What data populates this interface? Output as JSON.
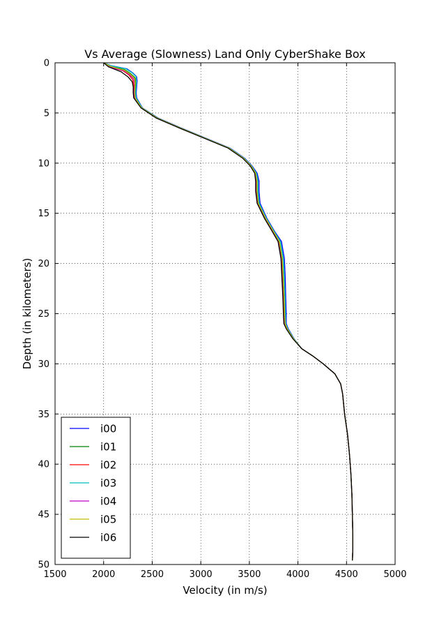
{
  "chart_data": {
    "type": "line",
    "title": "Vs Average (Slowness) Land Only CyberShake Box",
    "xlabel": "Velocity (in m/s)",
    "ylabel": "Depth (in kilometers)",
    "xlim": [
      1500,
      5000
    ],
    "ylim": [
      50,
      0
    ],
    "y_inverted": true,
    "xticks": [
      1500,
      2000,
      2500,
      3000,
      3500,
      4000,
      4500,
      5000
    ],
    "yticks": [
      0,
      5,
      10,
      15,
      20,
      25,
      30,
      35,
      40,
      45,
      50
    ],
    "grid": true,
    "grid_style": "dotted",
    "legend_position": "lower-left",
    "series": [
      {
        "name": "i00",
        "color": "#0000ff",
        "x": [
          2000,
          2080,
          2240,
          2300,
          2340,
          2345,
          2335,
          2340,
          2400,
          2560,
          2800,
          3050,
          3300,
          3450,
          3530,
          3580,
          3600,
          3600,
          3610,
          3680,
          3760,
          3830,
          3860,
          3870,
          3875,
          3880,
          3880,
          3900,
          3960,
          4040,
          4150,
          4260,
          4380,
          4440,
          4460,
          4480,
          4510,
          4530,
          4545,
          4555,
          4560,
          4565,
          4565,
          4562,
          4560
        ],
        "y": [
          0,
          0.3,
          0.6,
          1.0,
          1.4,
          1.8,
          3.0,
          3.5,
          4.5,
          5.5,
          6.5,
          7.5,
          8.5,
          9.5,
          10.3,
          11.0,
          11.8,
          12.8,
          14.0,
          15.5,
          16.8,
          17.8,
          19.5,
          21.5,
          23.5,
          25.0,
          26.0,
          26.5,
          27.5,
          28.5,
          29.2,
          30.0,
          31.0,
          32.0,
          33.0,
          35.0,
          37.0,
          39.0,
          41.0,
          43.0,
          45.0,
          47.0,
          48.5,
          49.3,
          49.6
        ]
      },
      {
        "name": "i01",
        "color": "#008000",
        "x": [
          2000,
          2070,
          2220,
          2280,
          2325,
          2330,
          2325,
          2330,
          2395,
          2550,
          2790,
          3040,
          3290,
          3440,
          3520,
          3565,
          3580,
          3580,
          3595,
          3670,
          3750,
          3810,
          3840,
          3850,
          3860,
          3865,
          3870,
          3890,
          3955,
          4040,
          4150,
          4260,
          4380,
          4440,
          4460,
          4480,
          4510,
          4530,
          4545,
          4555,
          4560,
          4565,
          4565,
          4562,
          4560
        ],
        "y": [
          0,
          0.3,
          0.7,
          1.1,
          1.5,
          2.0,
          3.0,
          3.5,
          4.5,
          5.5,
          6.5,
          7.5,
          8.5,
          9.5,
          10.3,
          11.0,
          11.8,
          12.8,
          14.0,
          15.5,
          16.8,
          17.8,
          19.5,
          21.5,
          23.5,
          25.0,
          26.0,
          26.5,
          27.5,
          28.5,
          29.2,
          30.0,
          31.0,
          32.0,
          33.0,
          35.0,
          37.0,
          39.0,
          41.0,
          43.0,
          45.0,
          47.0,
          48.5,
          49.3,
          49.6
        ]
      },
      {
        "name": "i02",
        "color": "#ff0000",
        "x": [
          2000,
          2060,
          2200,
          2260,
          2300,
          2310,
          2310,
          2315,
          2390,
          2545,
          2785,
          3035,
          3285,
          3435,
          3515,
          3560,
          3570,
          3570,
          3585,
          3660,
          3740,
          3800,
          3830,
          3840,
          3850,
          3855,
          3860,
          3885,
          3950,
          4040,
          4150,
          4260,
          4380,
          4440,
          4460,
          4480,
          4510,
          4530,
          4545,
          4555,
          4560,
          4565,
          4565,
          4562,
          4560
        ],
        "y": [
          0,
          0.4,
          0.8,
          1.2,
          1.7,
          2.2,
          3.0,
          3.5,
          4.5,
          5.5,
          6.5,
          7.5,
          8.5,
          9.5,
          10.3,
          11.0,
          11.8,
          12.8,
          14.0,
          15.5,
          16.8,
          17.8,
          19.5,
          21.5,
          23.5,
          25.0,
          26.0,
          26.5,
          27.5,
          28.5,
          29.2,
          30.0,
          31.0,
          32.0,
          33.0,
          35.0,
          37.0,
          39.0,
          41.0,
          43.0,
          45.0,
          47.0,
          48.5,
          49.3,
          49.6
        ]
      },
      {
        "name": "i03",
        "color": "#00bfbf",
        "x": [
          2000,
          2075,
          2230,
          2295,
          2335,
          2340,
          2330,
          2335,
          2398,
          2555,
          2795,
          3045,
          3295,
          3445,
          3525,
          3572,
          3590,
          3590,
          3602,
          3675,
          3755,
          3820,
          3850,
          3860,
          3868,
          3872,
          3875,
          3895,
          3958,
          4040,
          4150,
          4260,
          4380,
          4440,
          4460,
          4480,
          4510,
          4530,
          4545,
          4555,
          4560,
          4565,
          4565,
          4562,
          4560
        ],
        "y": [
          0,
          0.3,
          0.6,
          1.0,
          1.4,
          1.9,
          3.0,
          3.5,
          4.5,
          5.5,
          6.5,
          7.5,
          8.5,
          9.5,
          10.3,
          11.0,
          11.8,
          12.8,
          14.0,
          15.5,
          16.8,
          17.8,
          19.5,
          21.5,
          23.5,
          25.0,
          26.0,
          26.5,
          27.5,
          28.5,
          29.2,
          30.0,
          31.0,
          32.0,
          33.0,
          35.0,
          37.0,
          39.0,
          41.0,
          43.0,
          45.0,
          47.0,
          48.5,
          49.3,
          49.6
        ]
      },
      {
        "name": "i04",
        "color": "#bf00bf",
        "x": [
          2000,
          2065,
          2210,
          2270,
          2310,
          2320,
          2315,
          2320,
          2392,
          2548,
          2788,
          3038,
          3288,
          3438,
          3518,
          3562,
          3575,
          3575,
          3590,
          3665,
          3745,
          3805,
          3835,
          3845,
          3855,
          3860,
          3865,
          3888,
          3952,
          4040,
          4150,
          4260,
          4380,
          4440,
          4460,
          4480,
          4510,
          4530,
          4545,
          4555,
          4560,
          4565,
          4565,
          4562,
          4560
        ],
        "y": [
          0,
          0.4,
          0.8,
          1.2,
          1.6,
          2.1,
          3.0,
          3.5,
          4.5,
          5.5,
          6.5,
          7.5,
          8.5,
          9.5,
          10.3,
          11.0,
          11.8,
          12.8,
          14.0,
          15.5,
          16.8,
          17.8,
          19.5,
          21.5,
          23.5,
          25.0,
          26.0,
          26.5,
          27.5,
          28.5,
          29.2,
          30.0,
          31.0,
          32.0,
          33.0,
          35.0,
          37.0,
          39.0,
          41.0,
          43.0,
          45.0,
          47.0,
          48.5,
          49.3,
          49.6
        ]
      },
      {
        "name": "i05",
        "color": "#bfbf00",
        "x": [
          2000,
          2068,
          2215,
          2275,
          2318,
          2325,
          2320,
          2325,
          2393,
          2550,
          2790,
          3040,
          3290,
          3440,
          3520,
          3565,
          3578,
          3578,
          3592,
          3668,
          3748,
          3808,
          3838,
          3848,
          3858,
          3862,
          3868,
          3890,
          3954,
          4040,
          4150,
          4260,
          4380,
          4440,
          4460,
          4480,
          4510,
          4530,
          4545,
          4555,
          4560,
          4565,
          4565,
          4562,
          4560
        ],
        "y": [
          0,
          0.35,
          0.75,
          1.15,
          1.55,
          2.05,
          3.0,
          3.5,
          4.5,
          5.5,
          6.5,
          7.5,
          8.5,
          9.5,
          10.3,
          11.0,
          11.8,
          12.8,
          14.0,
          15.5,
          16.8,
          17.8,
          19.5,
          21.5,
          23.5,
          25.0,
          26.0,
          26.5,
          27.5,
          28.5,
          29.2,
          30.0,
          31.0,
          32.0,
          33.0,
          35.0,
          37.0,
          39.0,
          41.0,
          43.0,
          45.0,
          47.0,
          48.5,
          49.3,
          49.6
        ]
      },
      {
        "name": "i06",
        "color": "#000000",
        "x": [
          2000,
          2050,
          2180,
          2250,
          2295,
          2305,
          2305,
          2310,
          2385,
          2540,
          2780,
          3030,
          3280,
          3430,
          3510,
          3555,
          3565,
          3565,
          3580,
          3655,
          3735,
          3795,
          3825,
          3835,
          3845,
          3850,
          3855,
          3880,
          3948,
          4040,
          4150,
          4260,
          4380,
          4440,
          4460,
          4480,
          4510,
          4530,
          4545,
          4555,
          4560,
          4565,
          4565,
          4562,
          4560
        ],
        "y": [
          0,
          0.4,
          0.9,
          1.4,
          1.9,
          2.4,
          3.0,
          3.5,
          4.5,
          5.5,
          6.5,
          7.5,
          8.5,
          9.5,
          10.3,
          11.0,
          11.8,
          12.8,
          14.0,
          15.5,
          16.8,
          17.8,
          19.5,
          21.5,
          23.5,
          25.0,
          26.0,
          26.5,
          27.5,
          28.5,
          29.2,
          30.0,
          31.0,
          32.0,
          33.0,
          35.0,
          37.0,
          39.0,
          41.0,
          43.0,
          45.0,
          47.0,
          48.5,
          49.3,
          49.6
        ]
      }
    ]
  }
}
